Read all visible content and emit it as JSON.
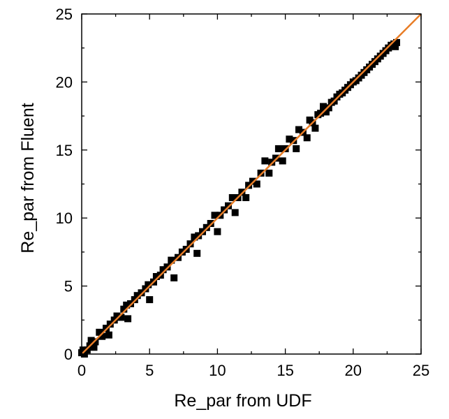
{
  "chart_data": {
    "type": "scatter",
    "title": "",
    "xlabel": "Re_par from UDF",
    "ylabel": "Re_par from Fluent",
    "xlim": [
      0,
      25
    ],
    "ylim": [
      0,
      25
    ],
    "xticks": [
      "0",
      "5",
      "10",
      "15",
      "20",
      "25"
    ],
    "yticks": [
      "0",
      "5",
      "10",
      "15",
      "20",
      "25"
    ],
    "grid": false,
    "legend": "none",
    "colors": {
      "points": "#000000",
      "parity_line": "#e87d27"
    },
    "series": [
      {
        "type": "scatter",
        "marker": "square",
        "points": [
          [
            0.0,
            0.1
          ],
          [
            0.1,
            0.3
          ],
          [
            0.2,
            0.0
          ],
          [
            0.4,
            0.3
          ],
          [
            0.6,
            0.6
          ],
          [
            0.7,
            1.0
          ],
          [
            0.9,
            0.5
          ],
          [
            1.0,
            0.9
          ],
          [
            1.3,
            1.6
          ],
          [
            1.5,
            1.3
          ],
          [
            1.8,
            1.9
          ],
          [
            2.0,
            1.4
          ],
          [
            2.1,
            2.2
          ],
          [
            2.4,
            2.5
          ],
          [
            2.6,
            2.8
          ],
          [
            2.9,
            2.7
          ],
          [
            3.1,
            3.3
          ],
          [
            3.3,
            3.6
          ],
          [
            3.4,
            2.6
          ],
          [
            3.6,
            3.7
          ],
          [
            3.9,
            4.0
          ],
          [
            4.1,
            4.3
          ],
          [
            4.4,
            4.5
          ],
          [
            4.7,
            4.8
          ],
          [
            4.9,
            5.1
          ],
          [
            5.0,
            4.0
          ],
          [
            5.3,
            5.3
          ],
          [
            5.5,
            5.7
          ],
          [
            5.8,
            5.8
          ],
          [
            6.0,
            6.2
          ],
          [
            6.3,
            6.4
          ],
          [
            6.6,
            6.9
          ],
          [
            6.8,
            5.6
          ],
          [
            7.1,
            7.1
          ],
          [
            7.4,
            7.5
          ],
          [
            7.7,
            7.7
          ],
          [
            8.0,
            8.1
          ],
          [
            8.3,
            8.6
          ],
          [
            8.5,
            7.4
          ],
          [
            8.6,
            8.7
          ],
          [
            8.9,
            9.0
          ],
          [
            9.2,
            9.3
          ],
          [
            9.5,
            9.6
          ],
          [
            9.8,
            10.2
          ],
          [
            10.0,
            9.0
          ],
          [
            10.2,
            10.2
          ],
          [
            10.5,
            10.6
          ],
          [
            10.8,
            10.9
          ],
          [
            11.1,
            11.5
          ],
          [
            11.3,
            10.4
          ],
          [
            11.5,
            11.5
          ],
          [
            11.8,
            11.9
          ],
          [
            12.1,
            11.5
          ],
          [
            12.3,
            12.4
          ],
          [
            12.6,
            12.7
          ],
          [
            12.9,
            12.5
          ],
          [
            13.2,
            13.3
          ],
          [
            13.5,
            14.2
          ],
          [
            13.8,
            13.3
          ],
          [
            14.0,
            14.1
          ],
          [
            14.3,
            14.4
          ],
          [
            14.5,
            15.1
          ],
          [
            14.8,
            14.2
          ],
          [
            15.0,
            15.1
          ],
          [
            15.3,
            15.8
          ],
          [
            15.6,
            15.7
          ],
          [
            15.8,
            15.1
          ],
          [
            16.0,
            16.5
          ],
          [
            16.3,
            16.3
          ],
          [
            16.6,
            15.9
          ],
          [
            16.8,
            17.2
          ],
          [
            17.0,
            17.0
          ],
          [
            17.2,
            16.6
          ],
          [
            17.4,
            17.6
          ],
          [
            17.6,
            17.7
          ],
          [
            17.8,
            18.2
          ],
          [
            18.0,
            17.8
          ],
          [
            18.2,
            18.1
          ],
          [
            18.4,
            18.5
          ],
          [
            18.6,
            18.6
          ],
          [
            18.8,
            18.9
          ],
          [
            19.0,
            19.1
          ],
          [
            19.2,
            19.2
          ],
          [
            19.4,
            19.4
          ],
          [
            19.6,
            19.6
          ],
          [
            19.8,
            19.8
          ],
          [
            20.0,
            20.0
          ],
          [
            20.2,
            20.1
          ],
          [
            20.4,
            20.3
          ],
          [
            20.6,
            20.5
          ],
          [
            20.8,
            20.7
          ],
          [
            21.0,
            20.9
          ],
          [
            21.2,
            21.1
          ],
          [
            21.4,
            21.3
          ],
          [
            21.6,
            21.5
          ],
          [
            21.8,
            21.7
          ],
          [
            22.0,
            21.9
          ],
          [
            22.2,
            22.1
          ],
          [
            22.4,
            22.3
          ],
          [
            22.6,
            22.5
          ],
          [
            22.8,
            22.7
          ],
          [
            23.0,
            22.8
          ],
          [
            23.1,
            22.6
          ],
          [
            23.2,
            22.9
          ]
        ]
      },
      {
        "type": "line",
        "points": [
          [
            0,
            0
          ],
          [
            25,
            25
          ]
        ]
      }
    ]
  }
}
